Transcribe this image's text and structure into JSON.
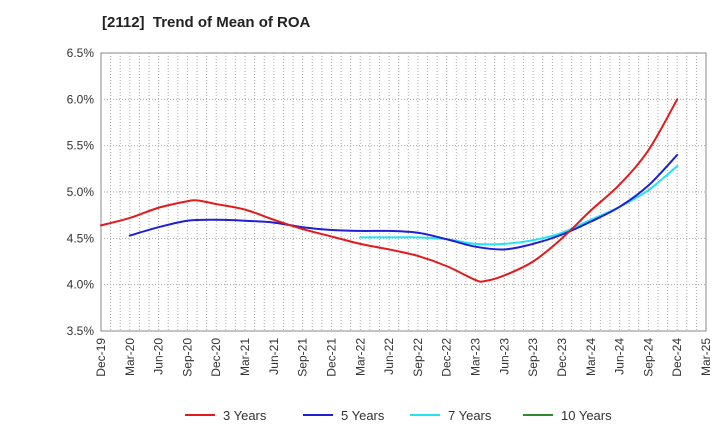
{
  "chart_data": {
    "type": "line",
    "title": "[2112]  Trend of Mean of ROA",
    "xlabel": "",
    "ylabel": "",
    "x_ticks": [
      "Dec-19",
      "Mar-20",
      "Jun-20",
      "Sep-20",
      "Dec-20",
      "Mar-21",
      "Jun-21",
      "Sep-21",
      "Dec-21",
      "Mar-22",
      "Jun-22",
      "Sep-22",
      "Dec-22",
      "Mar-23",
      "Jun-23",
      "Sep-23",
      "Dec-23",
      "Mar-24",
      "Jun-24",
      "Sep-24",
      "Dec-24",
      "Mar-25"
    ],
    "y_ticks": [
      "3.5%",
      "4.0%",
      "4.5%",
      "5.0%",
      "5.5%",
      "6.0%",
      "6.5%"
    ],
    "ylim": [
      3.5,
      6.5
    ],
    "grid": true,
    "legend_position": "bottom",
    "series": [
      {
        "name": "3 Years",
        "color": "#e31a1c",
        "x": [
          "Dec-19",
          "Mar-20",
          "Jun-20",
          "Sep-20",
          "Oct-20",
          "Dec-20",
          "Mar-21",
          "Jun-21",
          "Sep-21",
          "Dec-21",
          "Mar-22",
          "Jun-22",
          "Sep-22",
          "Dec-22",
          "Mar-23",
          "Apr-23",
          "Jun-23",
          "Sep-23",
          "Dec-23",
          "Mar-24",
          "Jun-24",
          "Sep-24",
          "Dec-24"
        ],
        "values": [
          4.64,
          4.72,
          4.83,
          4.9,
          4.91,
          4.87,
          4.81,
          4.7,
          4.6,
          4.52,
          4.44,
          4.38,
          4.31,
          4.2,
          4.05,
          4.04,
          4.1,
          4.25,
          4.5,
          4.8,
          5.08,
          5.45,
          6.0
        ]
      },
      {
        "name": "5 Years",
        "color": "#1f1fd6",
        "x": [
          "Mar-20",
          "Jun-20",
          "Sep-20",
          "Dec-20",
          "Mar-21",
          "Jun-21",
          "Sep-21",
          "Dec-21",
          "Mar-22",
          "Jun-22",
          "Sep-22",
          "Dec-22",
          "Mar-23",
          "Jun-23",
          "Sep-23",
          "Dec-23",
          "Mar-24",
          "Jun-24",
          "Sep-24",
          "Dec-24"
        ],
        "values": [
          4.53,
          4.62,
          4.69,
          4.7,
          4.69,
          4.67,
          4.62,
          4.59,
          4.58,
          4.58,
          4.56,
          4.49,
          4.41,
          4.38,
          4.44,
          4.54,
          4.68,
          4.84,
          5.07,
          5.4
        ]
      },
      {
        "name": "7 Years",
        "color": "#22e5f0",
        "x": [
          "Mar-22",
          "Jun-22",
          "Sep-22",
          "Dec-22",
          "Mar-23",
          "Jun-23",
          "Sep-23",
          "Dec-23",
          "Mar-24",
          "Jun-24",
          "Sep-24",
          "Dec-24"
        ],
        "values": [
          4.51,
          4.51,
          4.51,
          4.49,
          4.44,
          4.44,
          4.48,
          4.56,
          4.7,
          4.84,
          5.02,
          5.28
        ]
      },
      {
        "name": "10 Years",
        "color": "#2e8b2e",
        "x": [],
        "values": []
      }
    ]
  }
}
